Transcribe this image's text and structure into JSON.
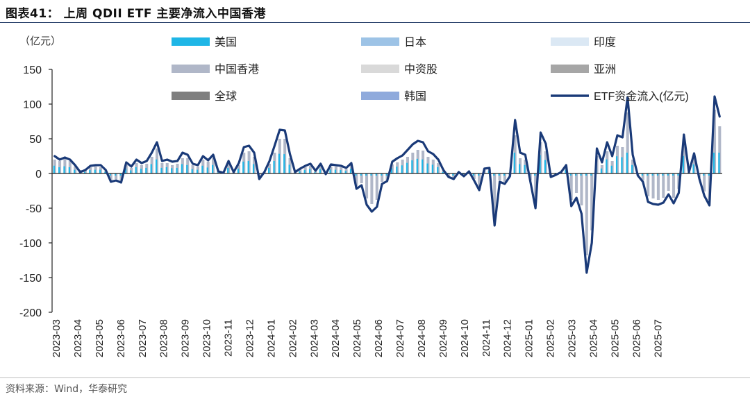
{
  "title": "图表41：  上周 QDII ETF 主要净流入中国香港",
  "source": "资料来源：Wind，华泰研究",
  "chart_data": {
    "type": "bar+line",
    "unit_label": "（亿元）",
    "ylim": [
      -200,
      150
    ],
    "yticks": [
      150,
      100,
      50,
      0,
      -50,
      -100,
      -150,
      -200
    ],
    "xticks": [
      "2023-03",
      "2023-04",
      "2023-05",
      "2023-06",
      "2023-07",
      "2023-08",
      "2023-09",
      "2023-10",
      "2023-11",
      "2023-12",
      "2024-01",
      "2024-02",
      "2024-03",
      "2024-04",
      "2024-05",
      "2024-06",
      "2024-07",
      "2024-08",
      "2024-09",
      "2024-10",
      "2024-11",
      "2024-12",
      "2025-01",
      "2025-02",
      "2025-03",
      "2025-04",
      "2025-05",
      "2025-06",
      "2025-07"
    ],
    "legend": [
      {
        "name": "美国",
        "color": "#1fb6e6",
        "kind": "bar"
      },
      {
        "name": "日本",
        "color": "#9dc3e6",
        "kind": "bar"
      },
      {
        "name": "印度",
        "color": "#dbe8f4",
        "kind": "bar"
      },
      {
        "name": "中国香港",
        "color": "#b0b7c8",
        "kind": "bar"
      },
      {
        "name": "中资股",
        "color": "#d9d9d9",
        "kind": "bar"
      },
      {
        "name": "亚洲",
        "color": "#a6a6a6",
        "kind": "bar"
      },
      {
        "name": "全球",
        "color": "#7f7f7f",
        "kind": "bar"
      },
      {
        "name": "韩国",
        "color": "#8faadc",
        "kind": "bar"
      },
      {
        "name": "ETF资金流入(亿元)",
        "color": "#1a3a78",
        "kind": "line"
      }
    ],
    "weeks_per_month": 4.2,
    "line": [
      25,
      20,
      23,
      20,
      12,
      2,
      5,
      11,
      12,
      12,
      5,
      -12,
      -10,
      -13,
      16,
      10,
      20,
      15,
      18,
      30,
      45,
      18,
      20,
      17,
      18,
      30,
      27,
      14,
      12,
      25,
      19,
      27,
      3,
      1,
      18,
      2,
      15,
      38,
      40,
      30,
      -8,
      2,
      18,
      40,
      63,
      62,
      28,
      2,
      7,
      11,
      14,
      4,
      14,
      -1,
      13,
      12,
      11,
      8,
      15,
      -22,
      -17,
      -45,
      -55,
      -48,
      -15,
      -11,
      17,
      22,
      26,
      34,
      42,
      47,
      45,
      32,
      28,
      20,
      5,
      -5,
      -8,
      2,
      -4,
      3,
      -10,
      -24,
      7,
      8,
      -75,
      -12,
      -15,
      -4,
      77,
      30,
      27,
      -12,
      -50,
      59,
      43,
      -5,
      -2,
      2,
      12,
      -47,
      -35,
      -58,
      -143,
      -100,
      36,
      16,
      45,
      25,
      55,
      52,
      110,
      27,
      -3,
      -12,
      -41,
      -44,
      -45,
      -42,
      -30,
      -43,
      -28,
      56,
      2,
      29,
      -7,
      -32,
      -46,
      111,
      82
    ],
    "hk_bars": [
      20,
      18,
      21,
      18,
      10,
      5,
      5,
      9,
      10,
      9,
      4,
      -10,
      -8,
      -10,
      12,
      8,
      15,
      12,
      14,
      24,
      36,
      15,
      15,
      12,
      14,
      22,
      22,
      12,
      10,
      20,
      17,
      22,
      3,
      1,
      14,
      3,
      12,
      30,
      32,
      24,
      -5,
      2,
      14,
      30,
      50,
      50,
      22,
      2,
      6,
      9,
      11,
      3,
      11,
      -1,
      10,
      10,
      9,
      6,
      12,
      -18,
      -14,
      -36,
      -44,
      -38,
      -12,
      -9,
      13,
      16,
      20,
      24,
      30,
      34,
      33,
      24,
      20,
      15,
      4,
      -4,
      -6,
      2,
      -3,
      2,
      -8,
      -19,
      5,
      6,
      -60,
      -10,
      -12,
      -3,
      55,
      22,
      20,
      -10,
      -42,
      45,
      32,
      -4,
      -2,
      2,
      8,
      -38,
      -28,
      -46,
      -118,
      -82,
      25,
      12,
      32,
      18,
      40,
      38,
      88,
      20,
      -3,
      -10,
      -33,
      -36,
      -38,
      -35,
      -25,
      -35,
      -22,
      45,
      2,
      22,
      -6,
      -26,
      -38,
      92,
      68
    ]
  }
}
